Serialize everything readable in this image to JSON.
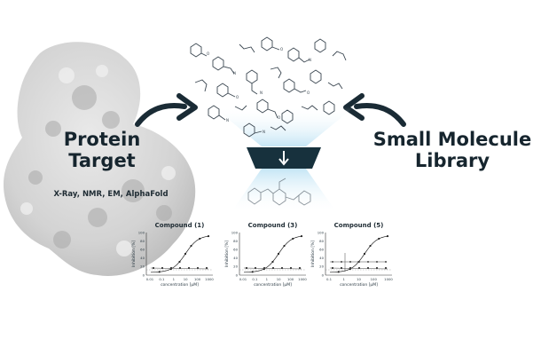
{
  "protein": {
    "title_line1": "Protein",
    "title_line2": "Target",
    "methods": "X-Ray, NMR, EM, AlphaFold"
  },
  "library": {
    "title_line1": "Small Molecule",
    "title_line2": "Library"
  },
  "plots": [
    {
      "title": "Compound (1)",
      "ylabel": "Inhibition [%]",
      "xlabel": "concentration [µM]",
      "yticks": [
        "100",
        "80",
        "60",
        "40",
        "20",
        "0"
      ],
      "xticks": [
        "0.01",
        "0.1",
        "1",
        "10",
        "100",
        "1000"
      ]
    },
    {
      "title": "Compound (3)",
      "ylabel": "Inhibition [%]",
      "xlabel": "concentration [µM]",
      "yticks": [
        "100",
        "80",
        "60",
        "40",
        "20",
        "0"
      ],
      "xticks": [
        "0.01",
        "0.1",
        "1",
        "10",
        "100",
        "1000"
      ]
    },
    {
      "title": "Compound (5)",
      "ylabel": "Inhibition [%]",
      "xlabel": "concentration [µM]",
      "yticks": [
        "100",
        "80",
        "60",
        "40",
        "20",
        "0"
      ],
      "xticks": [
        "0.1",
        "1",
        "10",
        "100",
        "1000"
      ]
    }
  ],
  "colors": {
    "text": "#16252e",
    "arrow": "#1a2b35",
    "funnel_glow": "#cfe9f6",
    "protein": "#cfcfcf"
  }
}
